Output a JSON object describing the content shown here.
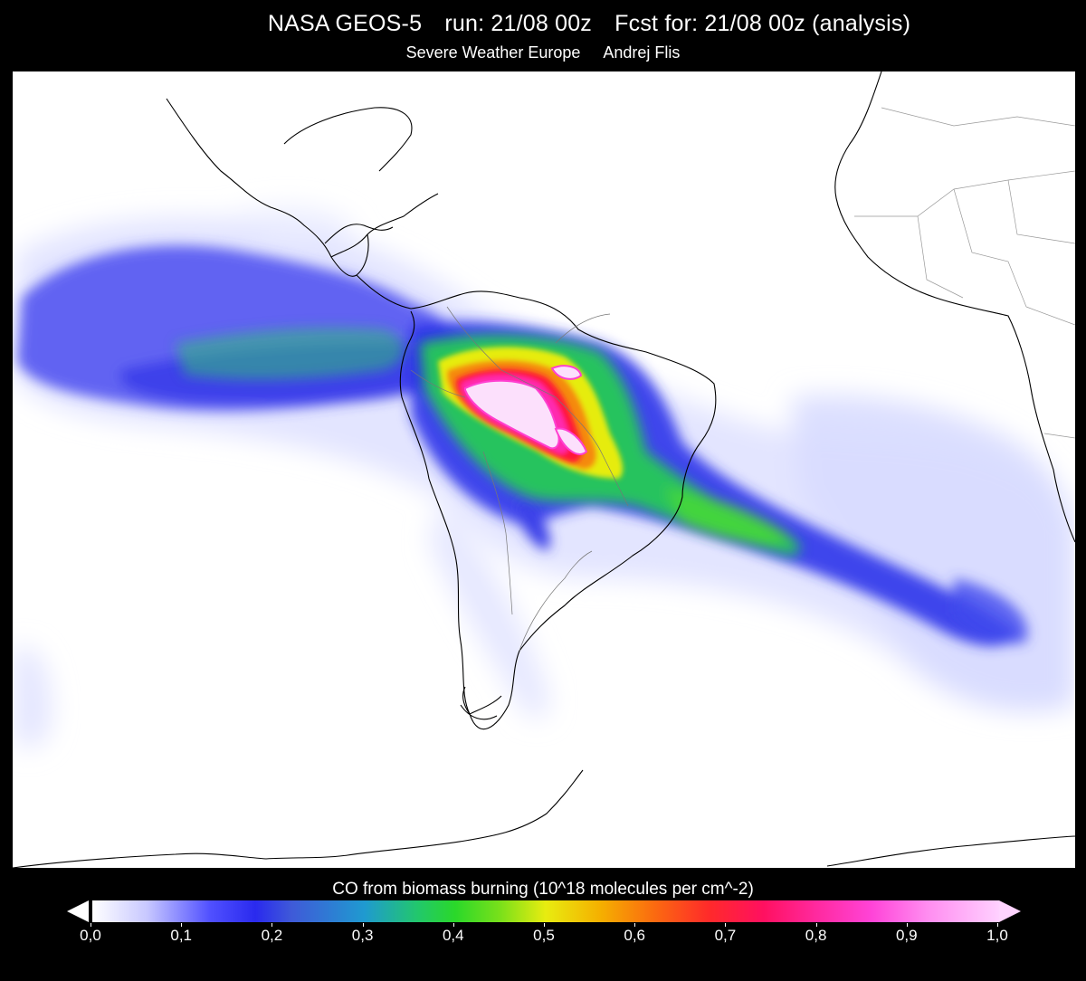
{
  "header": {
    "model": "NASA GEOS-5",
    "run": "run: 21/08 00z",
    "forecast": "Fcst for: 21/08 00z (analysis)",
    "source": "Severe Weather Europe",
    "author": "Andrej Flis"
  },
  "colorbar": {
    "title": "CO from biomass burning (10^18 molecules per cm^-2)",
    "tick_labels": [
      "0,0",
      "0,1",
      "0,2",
      "0,3",
      "0,4",
      "0,5",
      "0,6",
      "0,7",
      "0,8",
      "0,9",
      "1,0"
    ],
    "min": 0.0,
    "max": 1.0
  },
  "map": {
    "region": "South America, Atlantic and Eastern Pacific",
    "background_color": "#ffffff",
    "coastline_color": "#000000"
  }
}
